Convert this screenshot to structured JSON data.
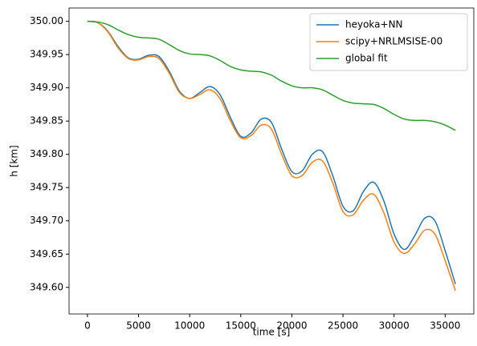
{
  "chart_data": {
    "type": "line",
    "xlabel": "time [s]",
    "ylabel": "h [km]",
    "x": [
      0,
      1000,
      2000,
      3000,
      4000,
      5000,
      6000,
      7000,
      8000,
      9000,
      10000,
      11000,
      12000,
      13000,
      14000,
      15000,
      16000,
      17000,
      18000,
      19000,
      20000,
      21000,
      22000,
      23000,
      24000,
      25000,
      26000,
      27000,
      28000,
      29000,
      30000,
      31000,
      32000,
      33000,
      34000,
      35000,
      36000
    ],
    "series": [
      {
        "name": "heyoka+NN",
        "color": "#1f77b4",
        "values": [
          350.0,
          349.998,
          349.985,
          349.962,
          349.945,
          349.943,
          349.949,
          349.947,
          349.925,
          349.895,
          349.884,
          349.893,
          349.902,
          349.889,
          349.855,
          349.827,
          349.832,
          349.853,
          349.848,
          349.808,
          349.774,
          349.775,
          349.8,
          349.804,
          349.768,
          349.722,
          349.715,
          349.744,
          349.758,
          349.73,
          349.68,
          349.657,
          349.677,
          349.704,
          349.7,
          349.655,
          349.605
        ]
      },
      {
        "name": "scipy+NRLMSISE-00",
        "color": "#ff7f0e",
        "values": [
          350.0,
          349.998,
          349.984,
          349.96,
          349.944,
          349.942,
          349.947,
          349.944,
          349.922,
          349.893,
          349.884,
          349.89,
          349.897,
          349.883,
          349.85,
          349.825,
          349.828,
          349.844,
          349.838,
          349.8,
          349.768,
          349.768,
          349.788,
          349.79,
          349.757,
          349.714,
          349.709,
          349.731,
          349.74,
          349.712,
          349.668,
          349.651,
          349.665,
          349.686,
          349.68,
          349.64,
          349.595
        ]
      },
      {
        "name": "global fit",
        "color": "#2ca02c",
        "values": [
          350.0,
          349.999,
          349.995,
          349.987,
          349.98,
          349.976,
          349.975,
          349.973,
          349.965,
          349.956,
          349.951,
          349.95,
          349.948,
          349.941,
          349.932,
          349.927,
          349.925,
          349.924,
          349.919,
          349.91,
          349.903,
          349.9,
          349.9,
          349.897,
          349.889,
          349.881,
          349.877,
          349.876,
          349.875,
          349.869,
          349.86,
          349.853,
          349.851,
          349.851,
          349.849,
          349.844,
          349.836
        ]
      }
    ],
    "xlim": [
      -1800,
      37800
    ],
    "xticks": [
      0,
      5000,
      10000,
      15000,
      20000,
      25000,
      30000,
      35000
    ],
    "ylim": [
      349.56,
      350.02
    ],
    "yticks": [
      {
        "value": 349.6,
        "label": "349.60"
      },
      {
        "value": 349.65,
        "label": "349.65"
      },
      {
        "value": 349.7,
        "label": "349.70"
      },
      {
        "value": 349.75,
        "label": "349.75"
      },
      {
        "value": 349.8,
        "label": "349.80"
      },
      {
        "value": 349.85,
        "label": "349.85"
      },
      {
        "value": 349.9,
        "label": "349.90"
      },
      {
        "value": 349.95,
        "label": "349.95"
      },
      {
        "value": 350.0,
        "label": "350.00"
      }
    ],
    "grid": false,
    "legend": "upper right"
  }
}
